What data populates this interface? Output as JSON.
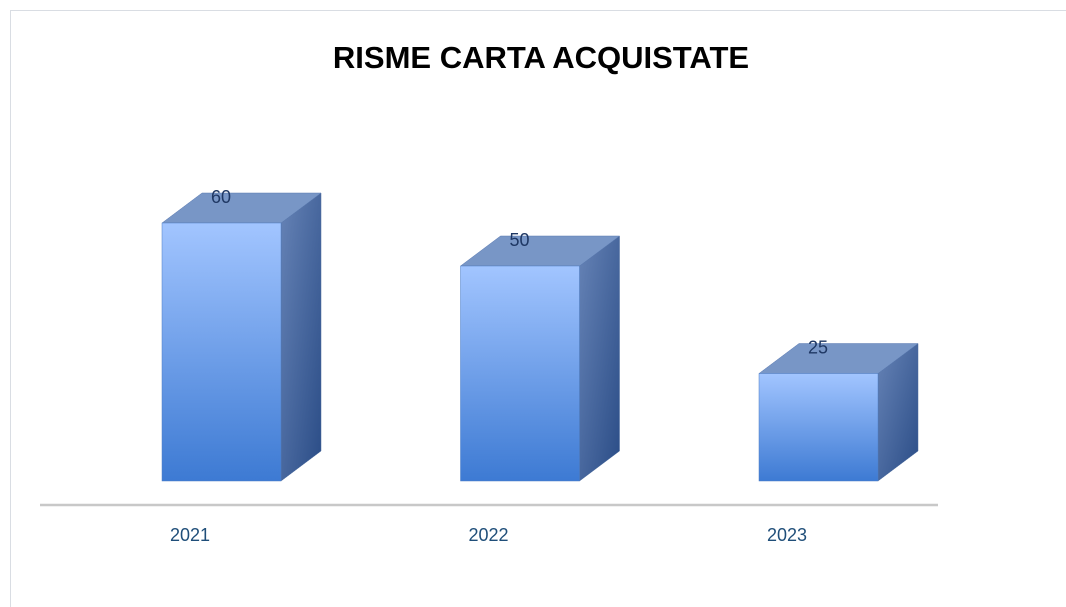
{
  "chart_data": {
    "type": "bar3d",
    "title": "RISME CARTA ACQUISTATE",
    "categories": [
      "2021",
      "2022",
      "2023"
    ],
    "values": [
      60,
      50,
      25
    ]
  }
}
